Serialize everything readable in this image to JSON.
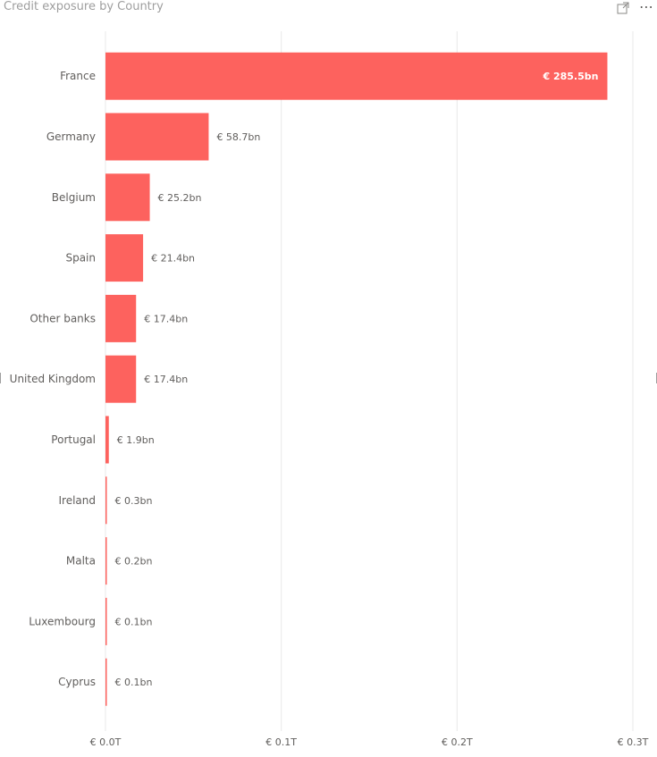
{
  "visual": {
    "title": "Credit exposure by Country",
    "icons": [
      "focus-mode-icon",
      "more-options-icon"
    ],
    "more_glyph": "⋯"
  },
  "colors": {
    "bar": "#fd625e",
    "gridline": "#e8e8e8",
    "axis_text": "#605e5c",
    "title_text": "#9e9e9e"
  },
  "chart_data": {
    "type": "bar",
    "orientation": "horizontal",
    "title": "Credit exposure by Country",
    "categories": [
      "France",
      "Germany",
      "Belgium",
      "Spain",
      "Other banks",
      "United Kingdom",
      "Portugal",
      "Ireland",
      "Malta",
      "Luxembourg",
      "Cyprus"
    ],
    "values": [
      285.5,
      58.7,
      25.2,
      21.4,
      17.4,
      17.4,
      1.9,
      0.3,
      0.2,
      0.1,
      0.1
    ],
    "unit": "EUR billions",
    "data_labels": [
      "€ 285.5bn",
      "€ 58.7bn",
      "€ 25.2bn",
      "€ 21.4bn",
      "€ 17.4bn",
      "€ 17.4bn",
      "€ 1.9bn",
      "€ 0.3bn",
      "€ 0.2bn",
      "€ 0.1bn",
      "€ 0.1bn"
    ],
    "x_ticks": [
      0,
      100,
      200,
      300
    ],
    "x_tick_labels": [
      "€ 0.0T",
      "€ 0.1T",
      "€ 0.2T",
      "€ 0.3T"
    ],
    "xlim": [
      0,
      300
    ],
    "xlabel": "",
    "ylabel": "",
    "grid": true,
    "legend": "none"
  }
}
